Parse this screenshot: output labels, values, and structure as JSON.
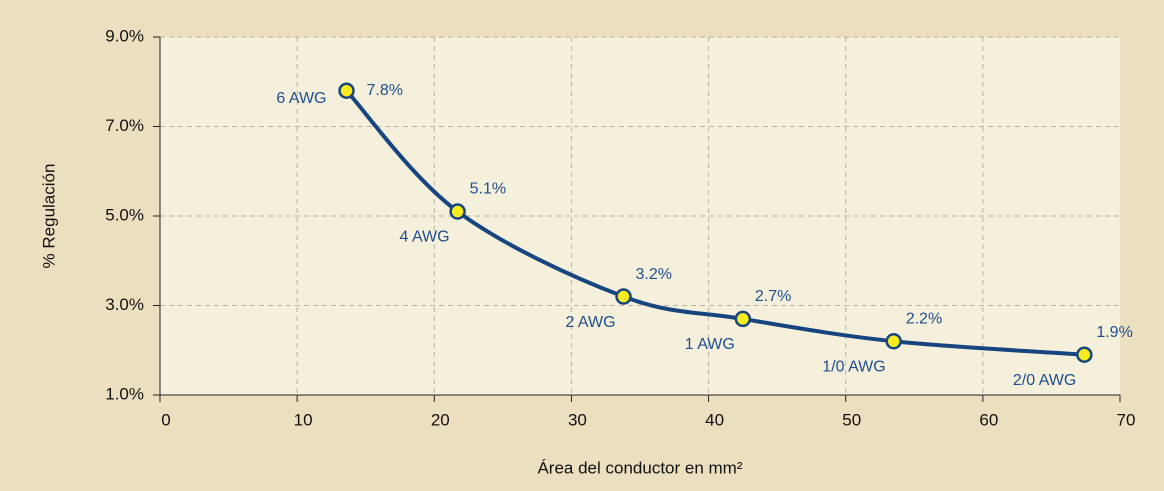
{
  "chart_data": {
    "type": "line",
    "x_label": "Área del conductor en mm²",
    "y_label": "% Regulación",
    "x": [
      13.6,
      21.7,
      33.8,
      42.5,
      53.5,
      67.4
    ],
    "point_labels": [
      "6 AWG",
      "4 AWG",
      "2 AWG",
      "1 AWG",
      "1/0 AWG",
      "2/0 AWG"
    ],
    "series": [
      {
        "color": "#17457f",
        "marker_color": "#f7ea1d",
        "values": [
          7.8,
          5.1,
          3.2,
          2.7,
          2.2,
          1.9
        ],
        "value_labels": [
          "7.8%",
          "5.1%",
          "3.2%",
          "2.7%",
          "2.2%",
          "1.9%"
        ]
      }
    ],
    "xlim": [
      0,
      70
    ],
    "xticks": [
      0,
      10,
      20,
      30,
      40,
      50,
      60,
      70
    ],
    "ylim": [
      1,
      9
    ],
    "yticks": [
      {
        "value": 1,
        "label": "1.0%"
      },
      {
        "value": 3,
        "label": "3.0%"
      },
      {
        "value": 5,
        "label": "5.0%"
      },
      {
        "value": 7,
        "label": "7.0%"
      },
      {
        "value": 9,
        "label": "9.0%"
      }
    ],
    "grid": true
  }
}
